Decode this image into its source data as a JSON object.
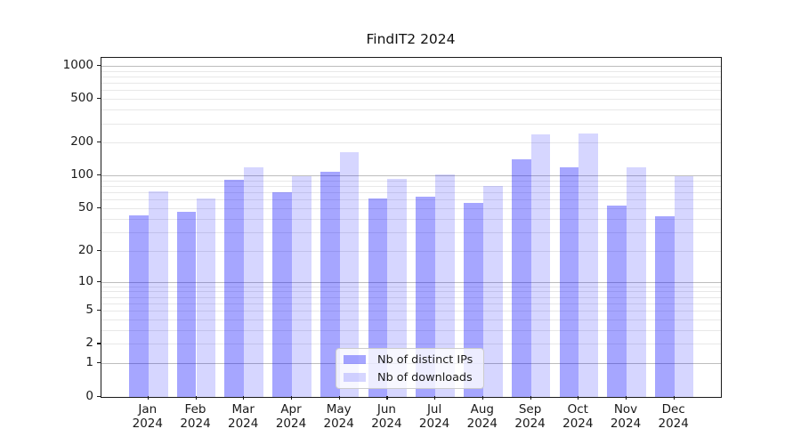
{
  "title": "FindIT2 2024",
  "chart_data": {
    "type": "bar",
    "title": "FindIT2 2024",
    "categories": [
      "Jan 2024",
      "Feb 2024",
      "Mar 2024",
      "Apr 2024",
      "May 2024",
      "Jun 2024",
      "Jul 2024",
      "Aug 2024",
      "Sep 2024",
      "Oct 2024",
      "Nov 2024",
      "Dec 2024"
    ],
    "series": [
      {
        "name": "Nb of distinct IPs",
        "color": "rgba(0,0,255,0.35)",
        "values": [
          43,
          46,
          92,
          71,
          108,
          62,
          64,
          56,
          140,
          119,
          53,
          42
        ]
      },
      {
        "name": "Nb of downloads",
        "color": "rgba(0,0,255,0.16)",
        "values": [
          72,
          62,
          120,
          98,
          165,
          94,
          103,
          81,
          238,
          244,
          118,
          98
        ]
      }
    ],
    "y_scale": "log1p",
    "y_ticks": [
      1000,
      500,
      200,
      100,
      50,
      20,
      10,
      5,
      2,
      1,
      0
    ],
    "y_minor_gridlines": [
      2,
      3,
      4,
      5,
      6,
      7,
      8,
      9,
      20,
      30,
      40,
      50,
      60,
      70,
      80,
      90,
      200,
      300,
      400,
      500,
      600,
      700,
      800,
      900
    ],
    "y_major_gridlines": [
      1,
      10,
      100,
      1000
    ],
    "ylim": [
      0,
      1190
    ],
    "xlabel": "",
    "ylabel": "",
    "grid": "both",
    "legend_position": "lower-center",
    "colors": {
      "bar_dark": "rgba(0,0,255,0.35)",
      "bar_light": "rgba(0,0,255,0.16)",
      "grid_major": "#bdbdbd",
      "grid_minor": "#e8e8e8",
      "spine": "#1a1a1a",
      "legend_border": "#cccccc"
    }
  },
  "legend": {
    "items": [
      {
        "label": "Nb of distinct IPs"
      },
      {
        "label": "Nb of downloads"
      }
    ]
  }
}
